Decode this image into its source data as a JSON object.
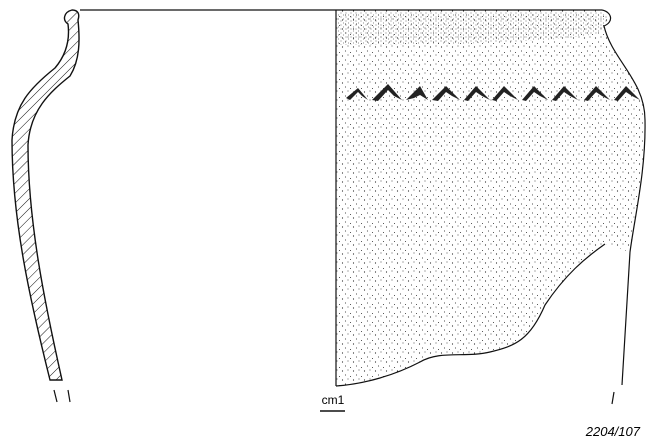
{
  "scale_label": "cm1",
  "catalog_number": "2204/107"
}
